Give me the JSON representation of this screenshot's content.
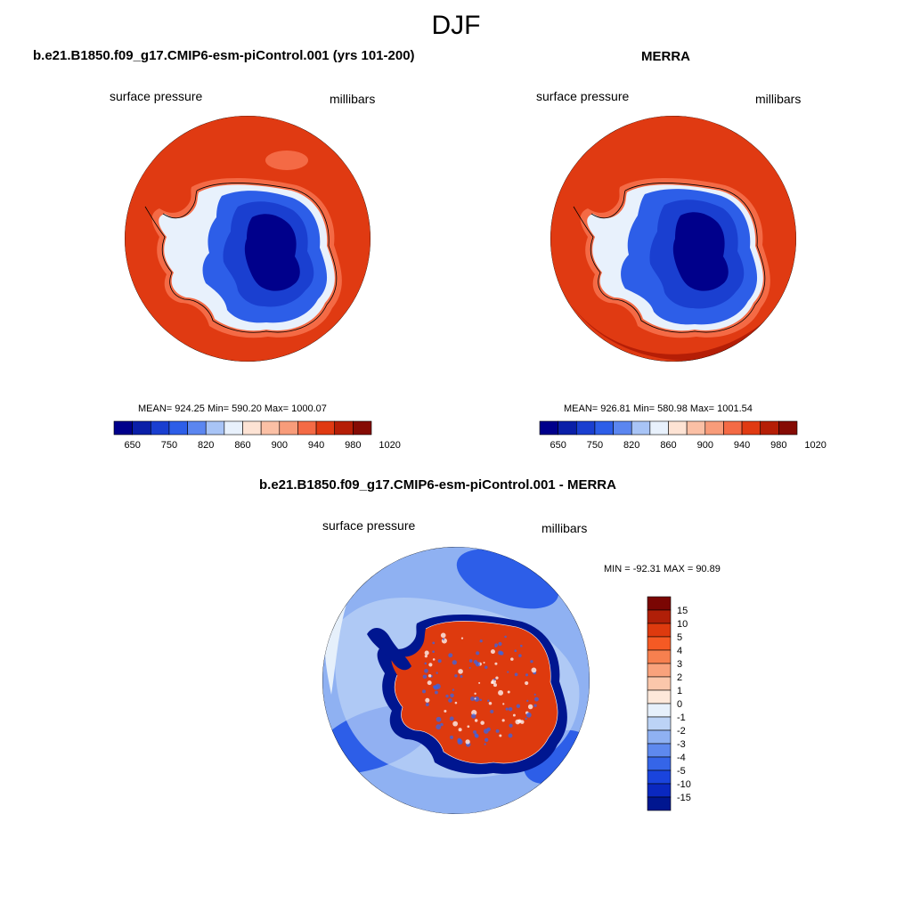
{
  "title": "DJF",
  "panels": [
    {
      "id": "model",
      "title": "b.e21.B1850.f09_g17.CMIP6-esm-piControl.001 (yrs 101-200)",
      "left_label": "surface pressure",
      "right_label": "millibars",
      "stats": "MEAN= 924.25  Min= 590.20  Max= 1000.07"
    },
    {
      "id": "obs",
      "title": "MERRA",
      "left_label": "surface pressure",
      "right_label": "millibars",
      "stats": "MEAN= 926.81  Min= 580.98  Max= 1001.54"
    },
    {
      "id": "diff",
      "title": "b.e21.B1850.f09_g17.CMIP6-esm-piControl.001 - MERRA",
      "left_label": "surface pressure",
      "right_label": "millibars",
      "stats": "MIN = -92.31 MAX =  90.89"
    }
  ],
  "abs_colorbar": {
    "colors": [
      "#00008b",
      "#0a1fa8",
      "#1a3fd0",
      "#2d5ee8",
      "#5b86f0",
      "#a8c4f6",
      "#e8f1fc",
      "#fde3d4",
      "#fbc0a5",
      "#f89c7a",
      "#f46a45",
      "#e03a12",
      "#b51e06",
      "#850b04"
    ],
    "labels": [
      "650",
      "750",
      "820",
      "860",
      "900",
      "940",
      "980",
      "1020"
    ]
  },
  "diff_colorbar": {
    "colors": [
      "#7a0603",
      "#b01f08",
      "#de3a0e",
      "#f55a24",
      "#f7804f",
      "#f9a27c",
      "#fbc7ab",
      "#fde8da",
      "#e6f0fb",
      "#bcd3f6",
      "#8fb1f2",
      "#5e89ee",
      "#3565e8",
      "#1a44dd",
      "#0a28c0",
      "#001690"
    ],
    "labels": [
      "15",
      "10",
      "5",
      "4",
      "3",
      "2",
      "1",
      "0",
      "-1",
      "-2",
      "-3",
      "-4",
      "-5",
      "-10",
      "-15"
    ]
  },
  "map_colors": {
    "ocean_high": "#e03a12",
    "ocean_edge": "#b51e06",
    "coast": "#f46a45",
    "shelf": "#e8f1fc",
    "plateau_1": "#2d5ee8",
    "plateau_2": "#1a3fd0",
    "plateau_3": "#00008b",
    "diff_bg": "#8fb1f2",
    "diff_light": "#bcd3f6",
    "diff_pale": "#e6f0fb",
    "diff_dark": "#001690",
    "diff_red": "#de3a0e"
  }
}
